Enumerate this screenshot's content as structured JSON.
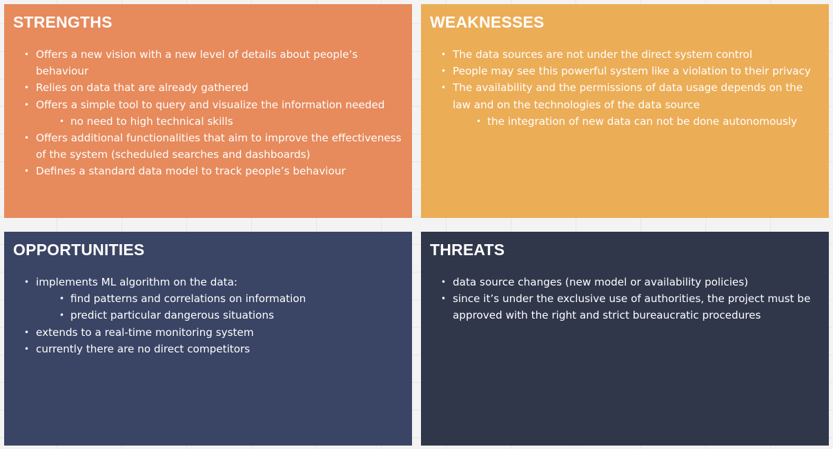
{
  "swot": {
    "strengths": {
      "title": "STRENGTHS",
      "color": "#e78a5c",
      "items": [
        {
          "level": 1,
          "text": "Offers a new vision with a new level of details about people’s behaviour"
        },
        {
          "level": 1,
          "text": "Relies on data that are already gathered"
        },
        {
          "level": 1,
          "text": "Offers a simple tool to query and visualize the information needed"
        },
        {
          "level": 2,
          "text": "no need to high technical skills"
        },
        {
          "level": 1,
          "text": "Offers additional functionalities that aim to improve the effectiveness of the system (scheduled searches and dashboards)"
        },
        {
          "level": 1,
          "text": "Defines a standard data model to track people’s behaviour"
        }
      ]
    },
    "weaknesses": {
      "title": "WEAKNESSES",
      "color": "#ecad57",
      "items": [
        {
          "level": 1,
          "text": "The data sources are not under the direct system control"
        },
        {
          "level": 1,
          "text": "People may see this powerful system like a violation to their privacy"
        },
        {
          "level": 1,
          "text": "The availability and the permissions of data usage depends on the law and on the technologies of the data source"
        },
        {
          "level": 3,
          "text": "the integration of new data can not be done autonomously"
        }
      ]
    },
    "opportunities": {
      "title": "OPPORTUNITIES",
      "color": "#3a4565",
      "items": [
        {
          "level": 1,
          "text": "implements ML algorithm on the data:"
        },
        {
          "level": 2,
          "text": "find patterns and correlations on information"
        },
        {
          "level": 2,
          "text": "predict particular dangerous situations"
        },
        {
          "level": 1,
          "text": "extends to a real-time monitoring system"
        },
        {
          "level": 1,
          "text": "currently there are no direct competitors"
        }
      ]
    },
    "threats": {
      "title": "THREATS",
      "color": "#30374b",
      "items": [
        {
          "level": 1,
          "text": "data source changes (new model or availability policies)"
        },
        {
          "level": 1,
          "text": "since it’s under the exclusive use of authorities, the project must be approved with the right and strict bureaucratic procedures"
        }
      ]
    }
  }
}
